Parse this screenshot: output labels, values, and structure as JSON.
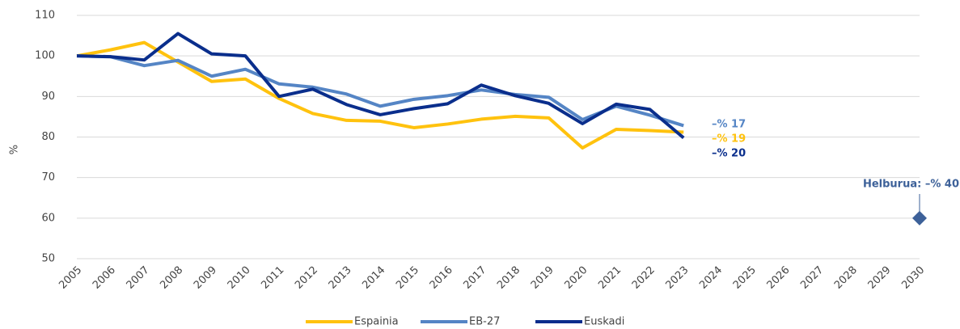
{
  "chart_data": {
    "type": "line",
    "ylabel": "%",
    "categories": [
      "2005",
      "2006",
      "2007",
      "2008",
      "2009",
      "2010",
      "2011",
      "2012",
      "2013",
      "2014",
      "2015",
      "2016",
      "2017",
      "2018",
      "2019",
      "2020",
      "2021",
      "2022",
      "2023",
      "2024",
      "2025",
      "2026",
      "2027",
      "2028",
      "2029",
      "2030"
    ],
    "series": [
      {
        "name": "Espainia",
        "color": "#ffc20e",
        "values": [
          100,
          101.5,
          103.3,
          98.5,
          93.7,
          94.3,
          89.5,
          85.8,
          84.1,
          83.9,
          82.3,
          83.2,
          84.4,
          85.1,
          84.7,
          77.3,
          81.9,
          81.6,
          81.2,
          null,
          null,
          null,
          null,
          null,
          null,
          null
        ]
      },
      {
        "name": "EB-27",
        "color": "#5585c5",
        "values": [
          100,
          99.8,
          97.6,
          98.9,
          95,
          96.7,
          93.1,
          92.3,
          90.6,
          87.6,
          89.3,
          90.2,
          91.6,
          90.5,
          89.8,
          84.3,
          87.6,
          85.4,
          82.8,
          null,
          null,
          null,
          null,
          null,
          null,
          null
        ]
      },
      {
        "name": "Euskadi",
        "color": "#0a2e8c",
        "values": [
          100,
          99.8,
          99,
          105.5,
          100.5,
          100,
          90,
          91.8,
          88,
          85.5,
          87,
          88.2,
          92.8,
          90.2,
          88.3,
          83.3,
          88.1,
          86.8,
          79.8,
          null,
          null,
          null,
          null,
          null,
          null,
          null
        ]
      }
    ],
    "annotations": [
      {
        "text": "–% 17",
        "color": "#5585c5"
      },
      {
        "text": "–% 19",
        "color": "#ffc20e"
      },
      {
        "text": "–% 20",
        "color": "#0a2e8c"
      }
    ],
    "target": {
      "label": "Helburua: –% 40",
      "value": 60,
      "color": "#3d6199"
    },
    "ylim": [
      50,
      110
    ],
    "yticks": [
      50,
      60,
      70,
      80,
      90,
      100,
      110
    ],
    "grid": true
  }
}
